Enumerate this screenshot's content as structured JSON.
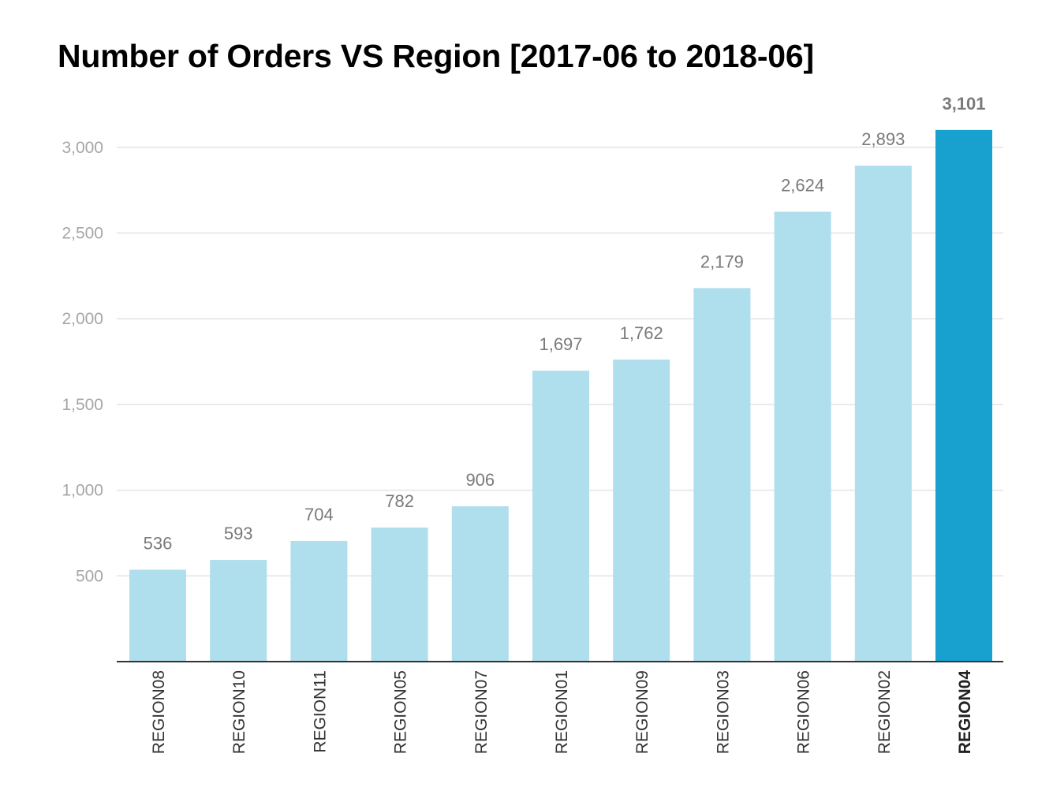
{
  "chart_data": {
    "type": "bar",
    "title": "Number of Orders VS Region [2017-06 to 2018-06]",
    "categories": [
      "REGION08",
      "REGION10",
      "REGION11",
      "REGION05",
      "REGION07",
      "REGION01",
      "REGION09",
      "REGION03",
      "REGION06",
      "REGION02",
      "REGION04"
    ],
    "values": [
      536,
      593,
      704,
      782,
      906,
      1697,
      1762,
      2179,
      2624,
      2893,
      3101
    ],
    "value_labels": [
      "536",
      "593",
      "704",
      "782",
      "906",
      "1,697",
      "1,762",
      "2,179",
      "2,624",
      "2,893",
      "3,101"
    ],
    "highlight_category": "REGION04",
    "xlabel": "",
    "ylabel": "",
    "ylim": [
      0,
      3101
    ],
    "yticks": [
      500,
      1000,
      1500,
      2000,
      2500,
      3000
    ],
    "ytick_labels": [
      "500",
      "1,000",
      "1,500",
      "2,000",
      "2,500",
      "3,000"
    ],
    "grid": true,
    "legend": "none",
    "colors": {
      "bar": "#afdeed",
      "highlight_bar": "#18a1ce",
      "gridline": "#e3e3e3",
      "axis": "#333333"
    }
  }
}
